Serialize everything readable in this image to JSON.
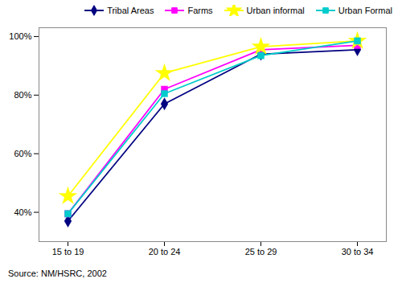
{
  "chart_data": {
    "type": "line",
    "categories": [
      "15 to 19",
      "20 to 24",
      "25 to 29",
      "30 to 34"
    ],
    "series": [
      {
        "name": "Tribal Areas",
        "color": "#000080",
        "marker": "diamond",
        "values": [
          0.37,
          0.77,
          0.94,
          0.955
        ]
      },
      {
        "name": "Farms",
        "color": "#FF00FF",
        "marker": "square",
        "values": [
          0.395,
          0.82,
          0.955,
          0.97
        ]
      },
      {
        "name": "Urban informal",
        "color": "#FFFF00",
        "marker": "star",
        "values": [
          0.455,
          0.875,
          0.965,
          0.985
        ]
      },
      {
        "name": "Urban Formal",
        "color": "#00CCCC",
        "marker": "square",
        "values": [
          0.395,
          0.805,
          0.935,
          0.985
        ]
      }
    ],
    "ylim": [
      0.3,
      1.03
    ],
    "yticks": [
      {
        "value": 0.4,
        "label": "40%"
      },
      {
        "value": 0.6,
        "label": "60%"
      },
      {
        "value": 0.8,
        "label": "80%"
      },
      {
        "value": 1.0,
        "label": "100%"
      }
    ],
    "legend": "upper right",
    "annotations": [
      "Source: NM/HSRC, 2002"
    ]
  }
}
